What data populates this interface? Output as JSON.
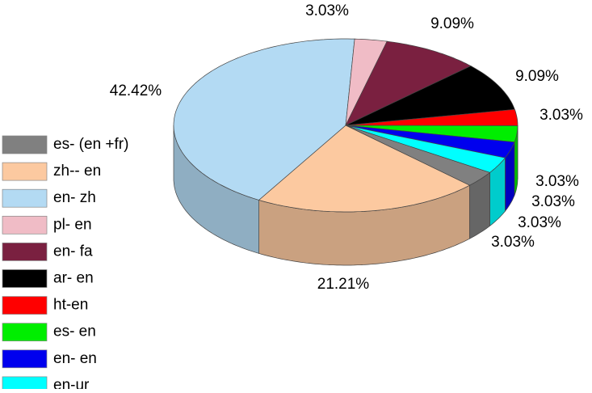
{
  "chart_data": {
    "type": "pie",
    "categories": [
      "es- (en +fr)",
      "zh-- en",
      "en- zh",
      "pl- en",
      "en- fa",
      "ar- en",
      "ht-en",
      "es- en",
      "en- en",
      "en-ur"
    ],
    "values": [
      3.03,
      21.21,
      42.42,
      3.03,
      9.09,
      9.09,
      3.03,
      3.03,
      3.03,
      3.03
    ],
    "value_labels": [
      "3.03%",
      "21.21%",
      "42.42%",
      "3.03%",
      "9.09%",
      "9.09%",
      "3.03%",
      "3.03%",
      "3.03%",
      "3.03%"
    ],
    "colors": [
      "#808080",
      "#fcc9a0",
      "#b3daf3",
      "#f0bcc6",
      "#7a2040",
      "#000000",
      "#ff0000",
      "#00ee00",
      "#0000ee",
      "#00ffff"
    ],
    "legend": "left"
  }
}
